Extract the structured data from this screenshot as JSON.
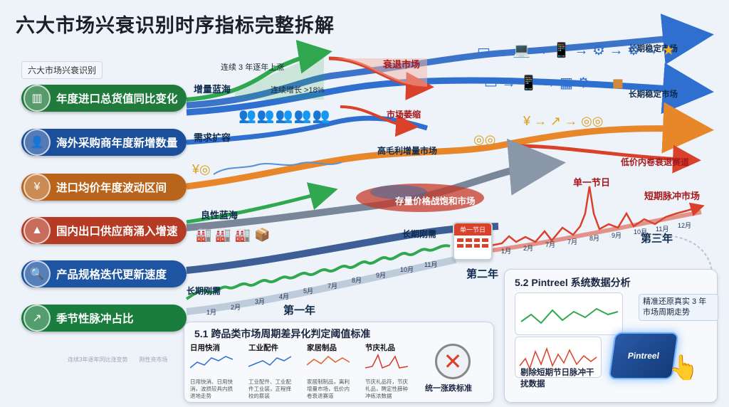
{
  "title": "六大市场兴衰识别时序指标完整拆解",
  "legend_tag": "六大市场兴衰识别",
  "indicators": [
    {
      "label": "年度进口总货值同比变化",
      "icon": "bar-chart-icon",
      "color": "#1f7a3c"
    },
    {
      "label": "海外采购商年度新增数量",
      "icon": "users-icon",
      "color": "#1b4f9c"
    },
    {
      "label": "进口均价年度波动区间",
      "icon": "yen-coin-icon",
      "color": "#b9641b"
    },
    {
      "label": "国内出口供应商涌入增速",
      "icon": "factory-icon",
      "color": "#b63b25"
    },
    {
      "label": "产品规格迭代更新速度",
      "icon": "document-search-icon",
      "color": "#1e55a3"
    },
    {
      "label": "季节性脉冲占比",
      "icon": "pulse-chart-icon",
      "color": "#1a7d3e"
    }
  ],
  "flow_labels": {
    "growth_blue_ocean": "增量蓝海",
    "three_years_rising": "连续 3 年逐年上涨",
    "continuous_growth": "连续增长 >18%",
    "declining_market": "衰退市场",
    "stable_market_1": "长期稳定市场",
    "stable_market_2": "长期稳定市场",
    "demand_expansion": "需求扩容",
    "shrinking_market": "市场萎缩",
    "high_margin_market": "高毛利增量市场",
    "low_price_involution": "低价内卷衰退赛道",
    "benign_blue_ocean": "良性蓝海",
    "price_war_market": "存量价格战饱和市场",
    "single_holiday": "单一节日",
    "short_pulse_market": "短期脉冲市场",
    "long_term_need_1": "长期刚需",
    "long_term_need_2": "长期刚需",
    "year_one": "第一年",
    "year_two": "第二年",
    "year_three": "第三年",
    "calendar_header": "单一节日",
    "faint_caption": "连续3年逐年同比涨变势　　刚性资市场"
  },
  "months_year1": [
    "1月",
    "2月",
    "3月",
    "4月",
    "5月",
    "7月",
    "8月",
    "9月",
    "10月",
    "11月"
  ],
  "months_year3": [
    "1月",
    "2月",
    "7月",
    "7月",
    "8月",
    "9月",
    "10月",
    "11月",
    "12月"
  ],
  "section_51": {
    "title": "5.1 跨品类市场周期差异化判定阈值标准",
    "categories": [
      {
        "name": "日用快消",
        "desc": "日用快消、日用快消，波损较具内损退地走势",
        "color": "#2f6fd0"
      },
      {
        "name": "工业配件",
        "desc": "工业配件、工业配件工业装，正程择校的薪装",
        "color": "#2f6fd0"
      },
      {
        "name": "家居制品",
        "desc": "家居制制品，离利增量市场，低价内卷衰退赛道",
        "color": "#e0602a"
      },
      {
        "name": "节庆礼品",
        "desc": "节庆礼品符，节庆礼品，聘定性薛种冲练浓数据",
        "color": "#d23a2a"
      }
    ],
    "no_uniform": "统一涨跌标准"
  },
  "section_52": {
    "title": "5.2 Pintreel 系统数据分析",
    "restore_text": "精准还原真实 3 年市场周期走势",
    "remove_text": "剔除短期节日脉冲干扰数据",
    "brand": "Pintreel"
  },
  "colors": {
    "green": "#2fa84f",
    "blue": "#2f6fd0",
    "orange": "#e8862a",
    "red": "#d9412b",
    "navy": "#2d4a7a"
  }
}
